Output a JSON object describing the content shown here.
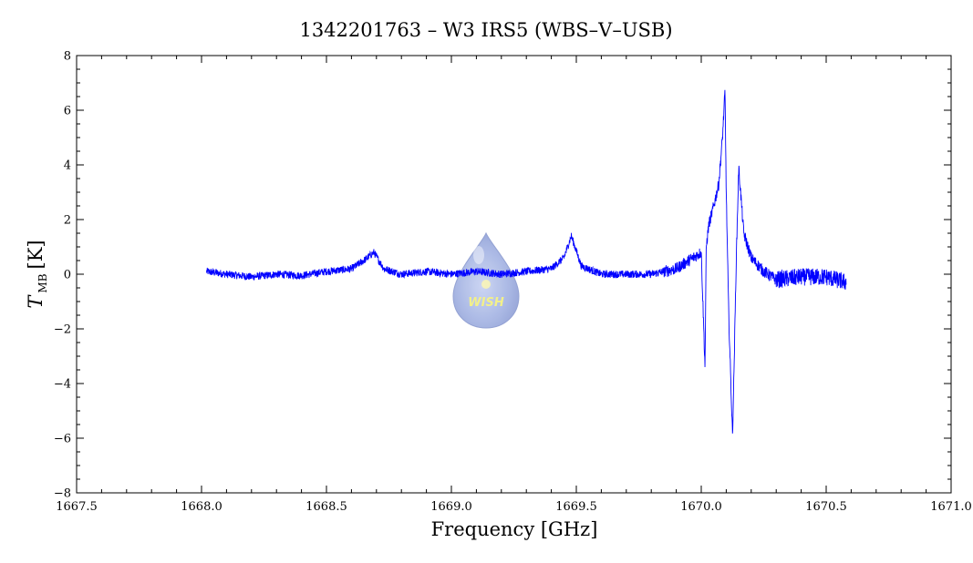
{
  "chart_data": {
    "type": "line",
    "title": "1342201763 – W3 IRS5 (WBS–V–USB)",
    "xlabel": "Frequency [GHz]",
    "ylabel_symbol": "T",
    "ylabel_subscript": "MB",
    "ylabel_unit": "[K]",
    "xlim": [
      1667.5,
      1671.0
    ],
    "ylim": [
      -8,
      8
    ],
    "x_ticks": [
      1667.5,
      1668.0,
      1668.5,
      1669.0,
      1669.5,
      1670.0,
      1670.5,
      1671.0
    ],
    "x_tick_labels": [
      "1667.5",
      "1668.0",
      "1668.5",
      "1669.0",
      "1669.5",
      "1670.0",
      "1670.5",
      "1671.0"
    ],
    "y_ticks": [
      -8,
      -6,
      -4,
      -2,
      0,
      2,
      4,
      6,
      8
    ],
    "y_tick_labels": [
      "−8",
      "−6",
      "−4",
      "−2",
      "0",
      "2",
      "4",
      "6",
      "8"
    ],
    "grid": false,
    "series_color": "#0000ff",
    "series": [
      {
        "x": [
          1668.02,
          1668.1,
          1668.2,
          1668.3,
          1668.4,
          1668.5,
          1668.6,
          1668.65,
          1668.69,
          1668.73,
          1668.8,
          1668.9,
          1669.0,
          1669.1,
          1669.2,
          1669.3,
          1669.4,
          1669.45,
          1669.48,
          1669.52,
          1669.6,
          1669.7,
          1669.8,
          1669.85,
          1669.9,
          1669.95,
          1670.0,
          1670.015,
          1670.02,
          1670.03,
          1670.05,
          1670.07,
          1670.085,
          1670.095,
          1670.1,
          1670.11,
          1670.125,
          1670.13,
          1670.14,
          1670.15,
          1670.17,
          1670.2,
          1670.25,
          1670.3,
          1670.4,
          1670.5,
          1670.58
        ],
        "y": [
          0.1,
          0.0,
          -0.1,
          0.0,
          -0.05,
          0.1,
          0.2,
          0.5,
          0.8,
          0.2,
          0.0,
          0.1,
          0.0,
          0.1,
          0.0,
          0.1,
          0.2,
          0.6,
          1.4,
          0.3,
          0.0,
          0.0,
          0.0,
          0.1,
          0.2,
          0.5,
          0.8,
          -3.4,
          1.0,
          1.8,
          2.5,
          3.3,
          5.0,
          6.7,
          3.0,
          -1.5,
          -5.9,
          -4.0,
          0.5,
          3.9,
          1.5,
          0.6,
          0.1,
          -0.2,
          -0.1,
          -0.1,
          -0.3
        ]
      }
    ]
  },
  "logo": {
    "text": "WISH"
  }
}
